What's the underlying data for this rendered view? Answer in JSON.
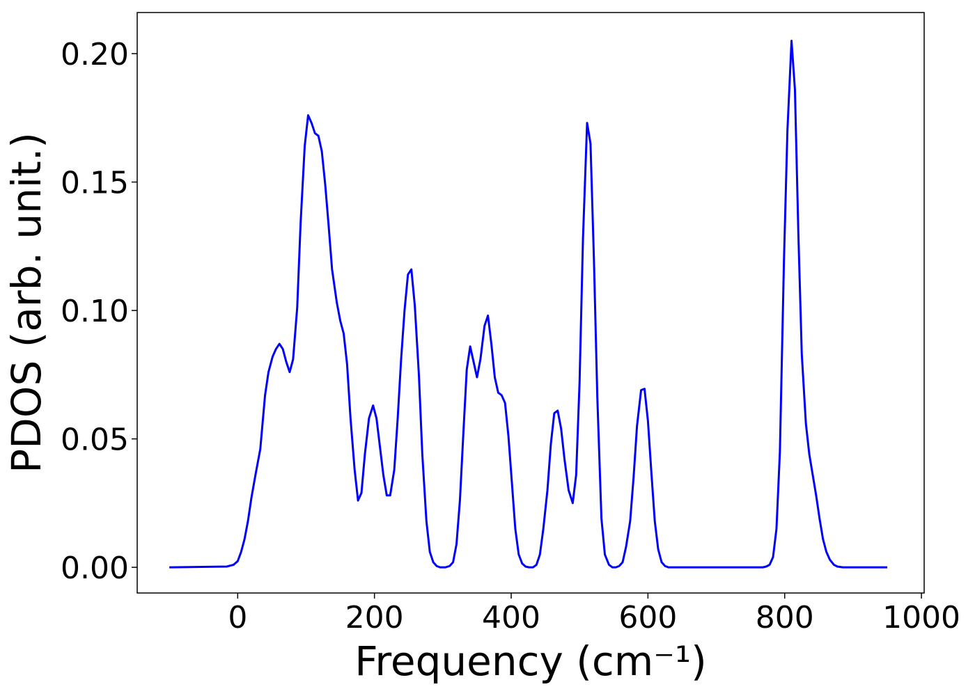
{
  "chart_data": {
    "type": "line",
    "x_label": "Frequency (cm⁻¹)",
    "y_label": "PDOS (arb. unit.)",
    "color": "#0000ff",
    "x": [
      -100,
      -16,
      -6,
      0,
      5,
      10,
      15,
      20,
      26,
      33,
      40,
      45,
      51,
      56,
      61,
      66,
      71,
      76,
      81,
      87,
      92,
      98,
      103,
      108,
      113,
      118,
      123,
      128,
      133,
      138,
      145,
      150,
      155,
      160,
      165,
      171,
      176,
      181,
      186,
      192,
      198,
      203,
      208,
      213,
      218,
      223,
      229,
      234,
      239,
      244,
      249,
      254,
      259,
      265,
      270,
      276,
      281,
      286,
      291,
      296,
      304,
      310,
      315,
      320,
      325,
      330,
      335,
      340,
      345,
      350,
      355,
      361,
      366,
      371,
      376,
      381,
      386,
      391,
      396,
      401,
      406,
      411,
      416,
      421,
      426,
      432,
      437,
      442,
      447,
      453,
      458,
      463,
      468,
      473,
      478,
      484,
      490,
      495,
      500,
      505,
      511,
      516,
      521,
      526,
      532,
      537,
      543,
      548,
      553,
      558,
      563,
      568,
      574,
      579,
      584,
      590,
      595,
      600,
      605,
      610,
      615,
      620,
      625,
      630,
      768,
      773,
      778,
      783,
      788,
      793,
      799,
      804,
      810,
      815,
      820,
      825,
      831,
      836,
      841,
      846,
      851,
      856,
      861,
      866,
      872,
      877,
      885,
      950
    ],
    "values": [
      0,
      0.0003,
      0.001,
      0.0024,
      0.006,
      0.011,
      0.018,
      0.027,
      0.036,
      0.046,
      0.067,
      0.076,
      0.082,
      0.085,
      0.087,
      0.085,
      0.08,
      0.076,
      0.081,
      0.101,
      0.134,
      0.164,
      0.176,
      0.173,
      0.169,
      0.168,
      0.162,
      0.149,
      0.133,
      0.116,
      0.103,
      0.096,
      0.091,
      0.079,
      0.058,
      0.038,
      0.026,
      0.029,
      0.044,
      0.058,
      0.063,
      0.058,
      0.047,
      0.036,
      0.028,
      0.028,
      0.038,
      0.058,
      0.081,
      0.1,
      0.114,
      0.116,
      0.102,
      0.075,
      0.044,
      0.018,
      0.006,
      0.002,
      0.0005,
      0,
      0,
      0.0005,
      0.002,
      0.009,
      0.026,
      0.052,
      0.077,
      0.086,
      0.08,
      0.074,
      0.081,
      0.094,
      0.098,
      0.087,
      0.074,
      0.068,
      0.067,
      0.064,
      0.051,
      0.033,
      0.015,
      0.005,
      0.0015,
      0.0003,
      0,
      0,
      0.001,
      0.005,
      0.015,
      0.03,
      0.048,
      0.06,
      0.061,
      0.054,
      0.042,
      0.03,
      0.025,
      0.036,
      0.072,
      0.128,
      0.173,
      0.165,
      0.12,
      0.066,
      0.019,
      0.005,
      0.001,
      0,
      0,
      0.0005,
      0.002,
      0.008,
      0.018,
      0.035,
      0.055,
      0.069,
      0.0695,
      0.057,
      0.037,
      0.018,
      0.007,
      0.002,
      0.0005,
      0,
      0,
      0.0003,
      0.001,
      0.004,
      0.015,
      0.045,
      0.12,
      0.17,
      0.205,
      0.186,
      0.13,
      0.083,
      0.056,
      0.044,
      0.036,
      0.028,
      0.019,
      0.011,
      0.006,
      0.003,
      0.001,
      0.0003,
      0,
      0
    ],
    "xlim": [
      -147,
      1004
    ],
    "ylim": [
      -0.01,
      0.216
    ],
    "xticks": [
      0,
      200,
      400,
      600,
      800,
      1000
    ],
    "yticks": [
      {
        "value": 0,
        "label": "0.00"
      },
      {
        "value": 0.05,
        "label": "0.05"
      },
      {
        "value": 0.1,
        "label": "0.10"
      },
      {
        "value": 0.15,
        "label": "0.15"
      },
      {
        "value": 0.2,
        "label": "0.20"
      }
    ]
  }
}
